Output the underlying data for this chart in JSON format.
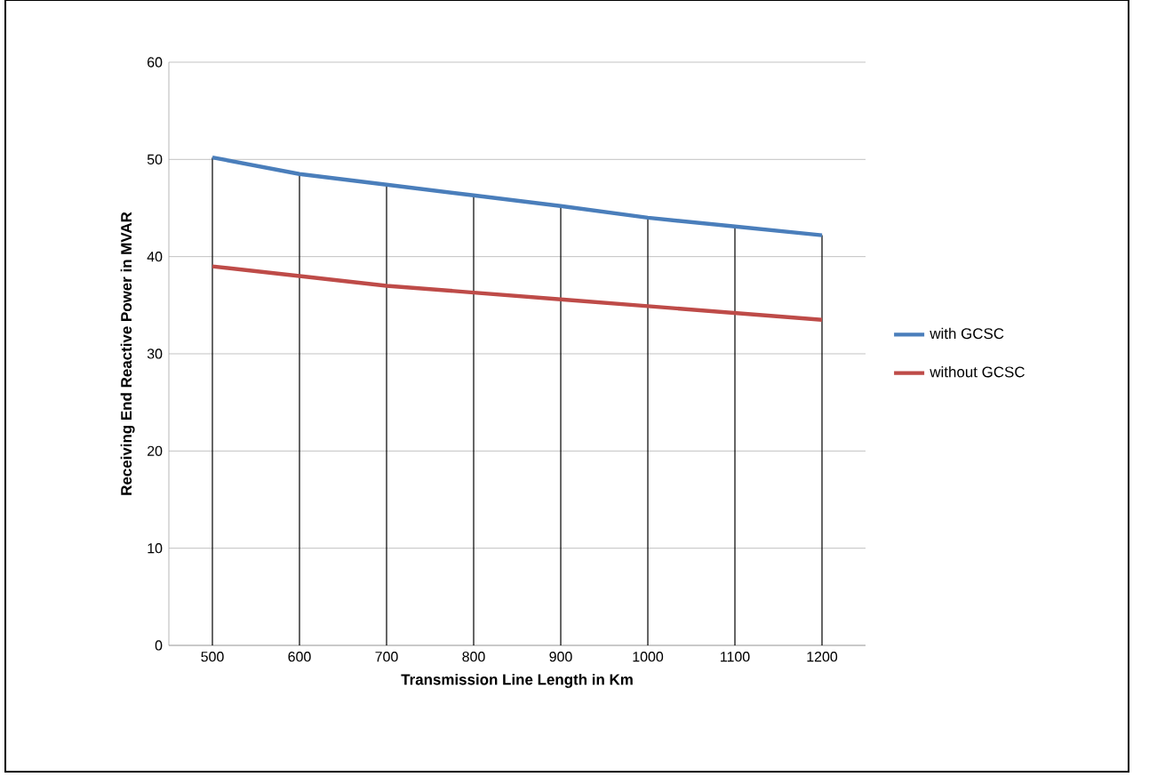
{
  "chart_data": {
    "type": "line",
    "xlabel": "Transmission Line Length in Km",
    "ylabel": "Receiving End Reactive Power in MVAR",
    "categories": [
      "500",
      "600",
      "700",
      "800",
      "900",
      "1000",
      "1100",
      "1200"
    ],
    "series": [
      {
        "name": "with GCSC",
        "color": "#4a7ebb",
        "values": [
          50.2,
          48.5,
          47.4,
          46.3,
          45.2,
          44.0,
          43.1,
          42.2
        ]
      },
      {
        "name": "without GCSC",
        "color": "#be4b48",
        "values": [
          39.0,
          38.0,
          37.0,
          36.3,
          35.6,
          34.9,
          34.2,
          33.5
        ]
      }
    ],
    "ylim": [
      0,
      60
    ],
    "yticks": [
      0,
      10,
      20,
      30,
      40,
      50,
      60
    ],
    "grid": true,
    "legend": "right",
    "marker": "none",
    "line_style": "solid"
  }
}
